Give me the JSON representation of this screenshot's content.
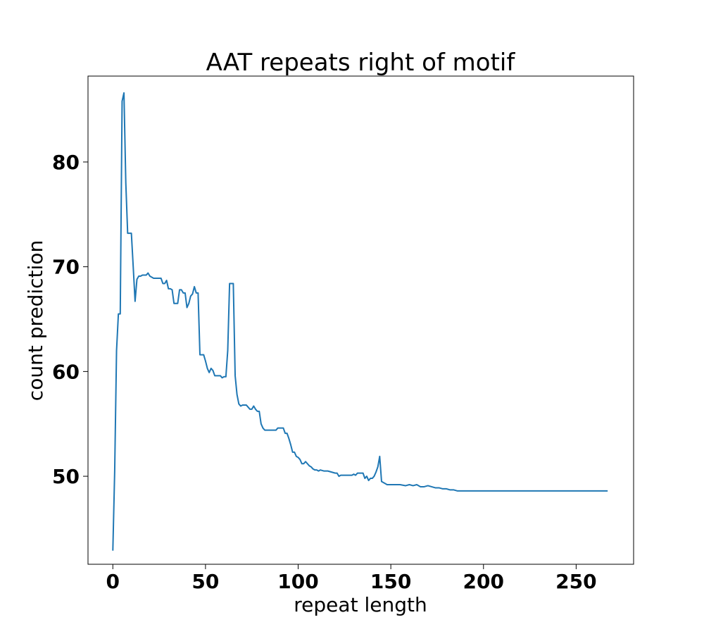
{
  "chart_data": {
    "type": "line",
    "title": "AAT repeats right of motif",
    "xlabel": "repeat length",
    "ylabel": "count prediction",
    "xlim": [
      -13.4,
      281
    ],
    "ylim": [
      41.6,
      88.2
    ],
    "xticks": [
      0,
      50,
      100,
      150,
      200,
      250
    ],
    "yticks": [
      50,
      60,
      70,
      80
    ],
    "grid": false,
    "series": [
      {
        "color": "#1f77b4",
        "x": [
          0,
          1,
          2,
          3,
          4,
          5,
          6,
          7,
          8,
          9,
          10,
          11,
          12,
          13,
          14,
          15,
          16,
          17,
          18,
          19,
          20,
          22,
          24,
          26,
          27,
          28,
          29,
          30,
          31,
          32,
          33,
          34,
          35,
          36,
          37,
          38,
          39,
          40,
          41,
          42,
          43,
          44,
          45,
          46,
          47,
          48,
          49,
          50,
          51,
          52,
          53,
          54,
          55,
          57,
          58,
          59,
          60,
          61,
          62,
          63,
          64,
          65,
          66,
          67,
          68,
          69,
          70,
          72,
          74,
          75,
          76,
          77,
          78,
          79,
          80,
          81,
          82,
          83,
          86,
          88,
          89,
          90,
          92,
          93,
          94,
          95,
          96,
          97,
          98,
          99,
          100,
          101,
          102,
          103,
          104,
          105,
          106,
          107,
          108,
          109,
          110,
          111,
          112,
          114,
          116,
          118,
          120,
          121,
          122,
          123,
          124,
          125,
          126,
          127,
          128,
          129,
          130,
          131,
          132,
          134,
          135,
          136,
          137,
          138,
          139,
          140,
          141,
          142,
          143,
          144,
          145,
          146,
          147,
          148,
          150,
          155,
          158,
          160,
          162,
          164,
          166,
          168,
          170,
          172,
          174,
          176,
          178,
          180,
          182,
          184,
          186,
          188,
          190,
          200,
          220,
          240,
          260,
          267
        ],
        "y": [
          42.9,
          50.5,
          62.0,
          65.5,
          65.5,
          85.8,
          86.6,
          78.0,
          73.2,
          73.2,
          73.2,
          70.0,
          66.7,
          68.8,
          69.1,
          69.1,
          69.2,
          69.2,
          69.2,
          69.4,
          69.1,
          68.9,
          68.9,
          68.9,
          68.4,
          68.4,
          68.7,
          67.9,
          67.9,
          67.8,
          66.5,
          66.5,
          66.5,
          67.8,
          67.8,
          67.5,
          67.5,
          66.1,
          66.5,
          67.2,
          67.4,
          68.1,
          67.5,
          67.5,
          61.6,
          61.6,
          61.6,
          61.0,
          60.3,
          59.9,
          60.3,
          60.1,
          59.6,
          59.6,
          59.6,
          59.4,
          59.5,
          59.5,
          62.0,
          68.4,
          68.4,
          68.4,
          59.6,
          57.8,
          56.9,
          56.7,
          56.8,
          56.8,
          56.4,
          56.4,
          56.7,
          56.4,
          56.2,
          56.2,
          55.0,
          54.6,
          54.4,
          54.4,
          54.4,
          54.4,
          54.6,
          54.6,
          54.6,
          54.1,
          54.1,
          53.6,
          53.0,
          52.3,
          52.3,
          51.9,
          51.8,
          51.6,
          51.2,
          51.2,
          51.4,
          51.2,
          51.0,
          50.9,
          50.7,
          50.6,
          50.6,
          50.5,
          50.6,
          50.5,
          50.5,
          50.4,
          50.3,
          50.3,
          50.0,
          50.1,
          50.1,
          50.1,
          50.1,
          50.1,
          50.1,
          50.1,
          50.2,
          50.1,
          50.3,
          50.3,
          50.3,
          49.8,
          50.0,
          49.6,
          49.8,
          49.8,
          50.0,
          50.4,
          50.9,
          51.9,
          49.5,
          49.4,
          49.3,
          49.2,
          49.2,
          49.2,
          49.1,
          49.2,
          49.1,
          49.2,
          49.0,
          49.0,
          49.1,
          49.0,
          48.9,
          48.9,
          48.8,
          48.8,
          48.7,
          48.7,
          48.6,
          48.6,
          48.6,
          48.6,
          48.6,
          48.6,
          48.6,
          48.6
        ]
      }
    ]
  }
}
